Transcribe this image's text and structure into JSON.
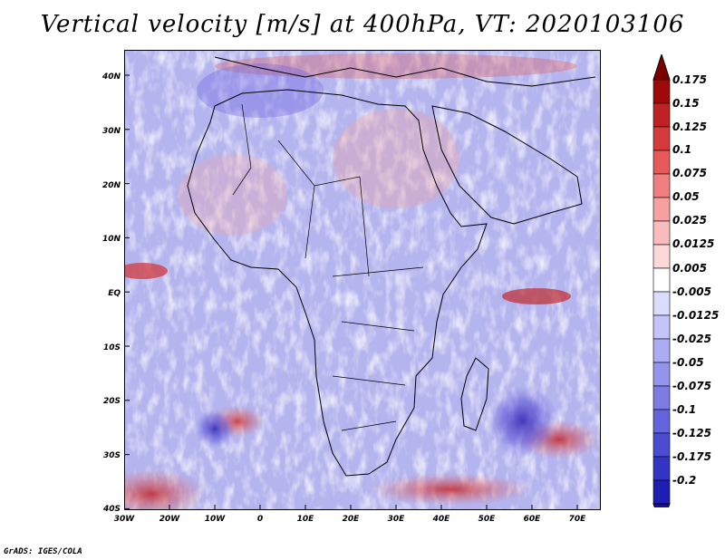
{
  "title": "Vertical velocity [m/s] at 400hPa, VT: 2020103106",
  "credit": "GrADS: IGES/COLA",
  "map": {
    "lat_labels": [
      "40N",
      "30N",
      "20N",
      "10N",
      "EQ",
      "10S",
      "20S",
      "30S",
      "40S"
    ],
    "lon_labels": [
      "30W",
      "20W",
      "10W",
      "0",
      "10E",
      "20E",
      "30E",
      "40E",
      "50E",
      "60E",
      "70E"
    ],
    "lat_range": [
      -40,
      45
    ],
    "lon_range": [
      -30,
      75
    ]
  },
  "colorbar": {
    "labels": [
      "0.175",
      "0.15",
      "0.125",
      "0.1",
      "0.075",
      "0.05",
      "0.025",
      "0.0125",
      "0.005",
      "-0.005",
      "-0.0125",
      "-0.025",
      "-0.05",
      "-0.075",
      "-0.1",
      "-0.125",
      "-0.175",
      "-0.2"
    ],
    "colors": [
      "#9e0a0a",
      "#be2222",
      "#d63b3b",
      "#e65a5a",
      "#f07f7f",
      "#f6a0a0",
      "#f9bcbc",
      "#fcd8d8",
      "#ffffff",
      "#dcdcff",
      "#c4c4fb",
      "#acacf4",
      "#9494ec",
      "#7c7ce4",
      "#6464dc",
      "#4c4cd2",
      "#3434c4",
      "#1e1eb2"
    ],
    "top_arrow_color": "#7a0000",
    "bottom_arrow_color": "#1a0aa0"
  }
}
